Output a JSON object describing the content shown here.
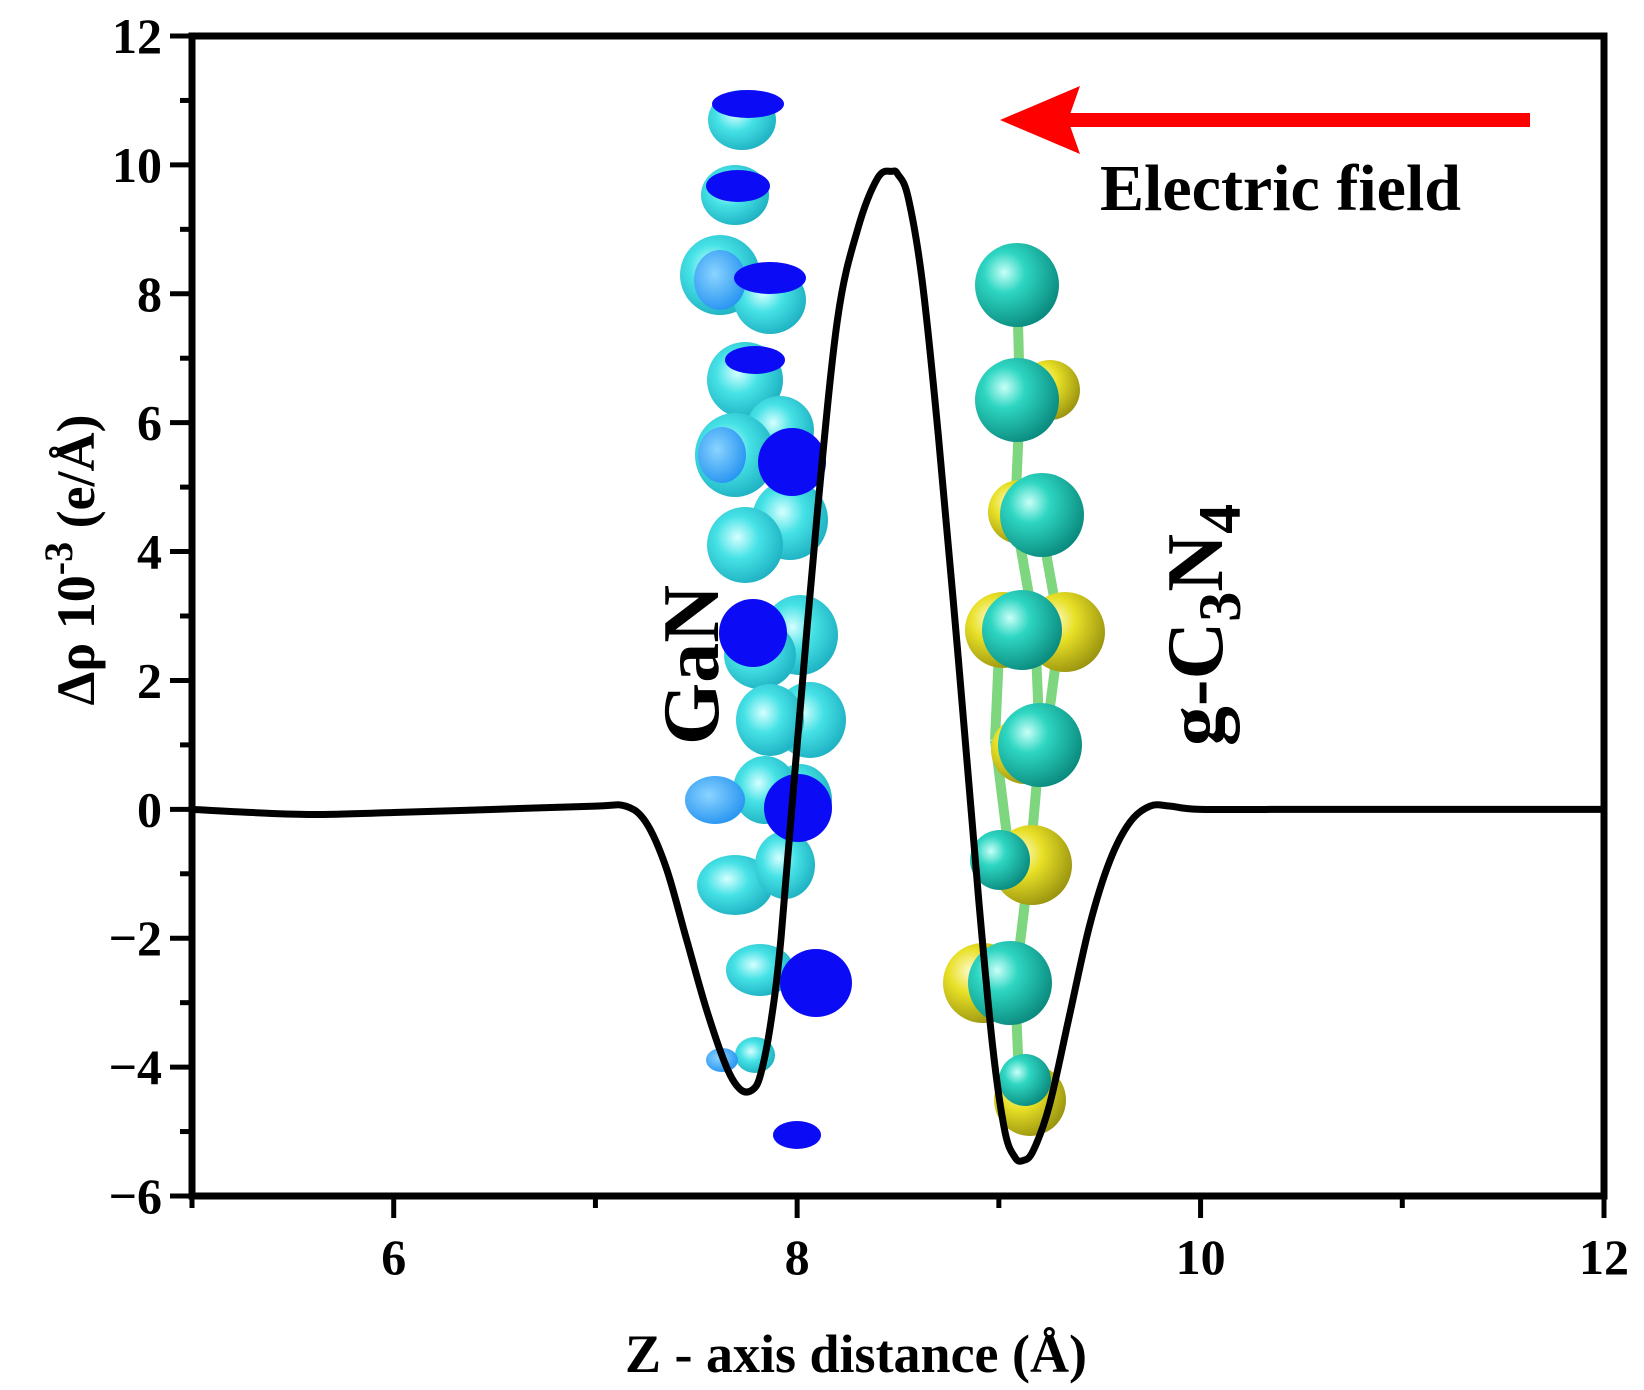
{
  "chart_data": {
    "type": "line",
    "title": "",
    "xlabel": "Z - axis distance (Å)",
    "ylabel_main": "Δρ 10",
    "ylabel_exp": "-3",
    "ylabel_unit": " (e/Å)",
    "xlim": [
      5,
      12
    ],
    "ylim": [
      -6,
      12
    ],
    "xticks": [
      6,
      8,
      10,
      12
    ],
    "xtick_labels": [
      "6",
      "8",
      "10",
      "12"
    ],
    "yticks": [
      -6,
      -4,
      -2,
      0,
      2,
      4,
      6,
      8,
      10,
      12
    ],
    "ytick_labels": [
      "−6",
      "−4",
      "−2",
      "0",
      "2",
      "4",
      "6",
      "8",
      "10",
      "12"
    ],
    "series": [
      {
        "name": "Δρ",
        "color": "#000000",
        "x": [
          5.0,
          5.3,
          5.6,
          6.0,
          6.5,
          7.0,
          7.15,
          7.25,
          7.35,
          7.45,
          7.55,
          7.65,
          7.72,
          7.78,
          7.82,
          7.87,
          7.92,
          8.0,
          8.1,
          8.2,
          8.3,
          8.4,
          8.47,
          8.5,
          8.55,
          8.62,
          8.7,
          8.8,
          8.9,
          8.97,
          9.03,
          9.08,
          9.12,
          9.17,
          9.25,
          9.35,
          9.45,
          9.55,
          9.65,
          9.75,
          9.85,
          10.0,
          10.5,
          11.0,
          12.0
        ],
        "y": [
          0.0,
          -0.05,
          -0.08,
          -0.05,
          0.0,
          0.05,
          0.05,
          -0.2,
          -0.9,
          -2.0,
          -3.1,
          -4.0,
          -4.35,
          -4.35,
          -4.1,
          -3.3,
          -2.0,
          1.0,
          4.6,
          7.6,
          9.0,
          9.8,
          9.9,
          9.85,
          9.5,
          8.2,
          5.8,
          2.3,
          -1.4,
          -3.7,
          -5.0,
          -5.4,
          -5.45,
          -5.3,
          -4.6,
          -3.2,
          -1.8,
          -0.8,
          -0.2,
          0.05,
          0.05,
          0.0,
          0.0,
          0.0,
          0.0
        ]
      }
    ],
    "annotations": {
      "left_material": "GaN",
      "right_g": "g-C",
      "right_sub3": "3",
      "right_N": "N",
      "right_sub4": "4",
      "arrow_label": "Electric field"
    },
    "colors": {
      "arrow": "#ff0000",
      "gan_atom_light": "#40e0e0",
      "gan_atom_mid": "#2aa0ff",
      "gan_atom_dark": "#0b0bf5",
      "cn_atom_teal": "#20c8b0",
      "cn_atom_yellow": "#e6e020",
      "cn_bond": "#7ed67e"
    }
  }
}
